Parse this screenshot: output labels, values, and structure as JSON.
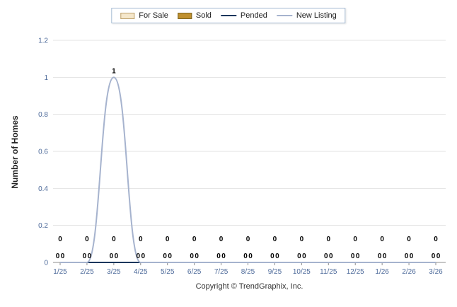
{
  "legend": {
    "items": [
      {
        "label": "For Sale",
        "type": "rect",
        "fill": "#f5e7cb",
        "border": "#bca06b"
      },
      {
        "label": "Sold",
        "type": "rect",
        "fill": "#c0902e",
        "border": "#7d6420"
      },
      {
        "label": "Pended",
        "type": "line",
        "color": "#17365d"
      },
      {
        "label": "New Listing",
        "type": "line",
        "color": "#a6b3ce"
      }
    ]
  },
  "chart_data": {
    "type": "line",
    "title": "",
    "xlabel": "",
    "ylabel": "Number of Homes",
    "ylim": [
      0,
      1.2
    ],
    "yticks": [
      0,
      0.2,
      0.4,
      0.6,
      0.8,
      1,
      1.2
    ],
    "grid": true,
    "legend_position": "top",
    "categories": [
      "1/25",
      "2/25",
      "3/25",
      "4/25",
      "5/25",
      "6/25",
      "7/25",
      "8/25",
      "9/25",
      "10/25",
      "11/25",
      "12/25",
      "1/26",
      "2/26",
      "3/26"
    ],
    "series": [
      {
        "name": "For Sale",
        "values": [
          0,
          0,
          0,
          0,
          0,
          0,
          0,
          0,
          0,
          0,
          0,
          0,
          0,
          0,
          0
        ]
      },
      {
        "name": "Sold",
        "values": [
          0,
          0,
          0,
          0,
          0,
          0,
          0,
          0,
          0,
          0,
          0,
          0,
          0,
          0,
          0
        ]
      },
      {
        "name": "Pended",
        "values": [
          0,
          0,
          0,
          0,
          0,
          0,
          0,
          0,
          0,
          0,
          0,
          0,
          0,
          0,
          0
        ]
      },
      {
        "name": "New Listing",
        "values": [
          0,
          0,
          1,
          0,
          0,
          0,
          0,
          0,
          0,
          0,
          0,
          0,
          0,
          0,
          0
        ]
      }
    ],
    "peak_annotation": "1"
  },
  "footer": {
    "copyright": "Copyright © TrendGraphix, Inc."
  },
  "colors": {
    "grid": "#e3e3e3",
    "axis": "#8c8c8c",
    "tick_text": "#4d6a9a",
    "data_label": "#000000",
    "axis_title": "#222222"
  }
}
